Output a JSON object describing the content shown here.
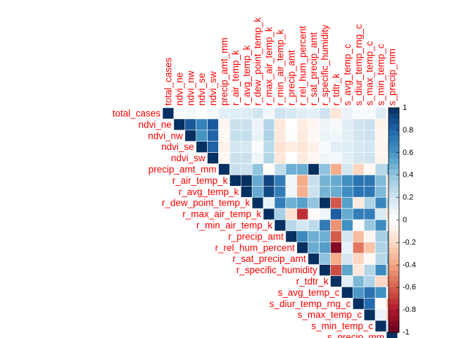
{
  "chart_data": {
    "type": "heatmap",
    "layout": "upper-triangle",
    "variables": [
      "total_cases",
      "ndvi_ne",
      "ndvi_nw",
      "ndvi_se",
      "ndvi_sw",
      "precip_amt_mm",
      "r_air_temp_k",
      "r_avg_temp_k",
      "r_dew_point_temp_k",
      "r_max_air_temp_k",
      "r_min_air_temp_k",
      "r_precip_amt",
      "r_rel_hum_percent",
      "r_sat_precip_amt",
      "r_specific_humidity",
      "r_tdtr_k",
      "s_avg_temp_c",
      "s_diur_temp_rng_c",
      "s_max_temp_c",
      "s_min_temp_c",
      "s_precip_mm"
    ],
    "matrix": [
      [
        1.0,
        0.03,
        0.05,
        0.0,
        0.05,
        0.12,
        0.14,
        0.15,
        0.2,
        0.06,
        0.21,
        0.18,
        0.14,
        0.12,
        0.21,
        -0.14,
        0.1,
        0.03,
        0.04,
        0.15,
        0.04
      ],
      [
        0.03,
        1.0,
        0.85,
        0.67,
        0.84,
        -0.05,
        0.22,
        0.22,
        0.08,
        0.3,
        -0.13,
        0.0,
        -0.1,
        -0.05,
        0.08,
        0.04,
        0.13,
        0.2,
        0.22,
        -0.07,
        -0.03
      ],
      [
        0.05,
        0.85,
        1.0,
        0.6,
        0.81,
        -0.04,
        0.24,
        0.24,
        0.09,
        0.31,
        -0.13,
        0.01,
        -0.11,
        -0.04,
        0.09,
        0.07,
        0.12,
        0.2,
        0.22,
        -0.05,
        -0.01
      ],
      [
        0.0,
        0.67,
        0.6,
        1.0,
        0.82,
        -0.08,
        0.19,
        0.18,
        0.02,
        0.27,
        -0.16,
        -0.1,
        -0.14,
        -0.08,
        0.03,
        0.13,
        0.14,
        0.18,
        0.19,
        -0.06,
        -0.07
      ],
      [
        0.05,
        0.84,
        0.81,
        0.82,
        1.0,
        -0.05,
        0.22,
        0.22,
        0.07,
        0.3,
        -0.14,
        0.0,
        -0.11,
        -0.05,
        0.07,
        0.06,
        0.13,
        0.19,
        0.21,
        -0.06,
        -0.04
      ],
      [
        0.12,
        -0.05,
        -0.04,
        -0.08,
        -0.05,
        1.0,
        0.23,
        0.22,
        0.4,
        -0.02,
        0.26,
        0.49,
        0.5,
        1.0,
        0.41,
        -0.37,
        0.19,
        -0.22,
        -0.04,
        0.29,
        0.46
      ],
      [
        0.14,
        0.22,
        0.24,
        0.19,
        0.22,
        0.23,
        1.0,
        1.0,
        0.51,
        0.92,
        0.7,
        0.07,
        -0.37,
        0.23,
        0.47,
        0.51,
        0.61,
        0.74,
        0.73,
        0.44,
        -0.12
      ],
      [
        0.15,
        0.22,
        0.24,
        0.18,
        0.22,
        0.22,
        1.0,
        1.0,
        0.51,
        0.91,
        0.7,
        0.07,
        -0.36,
        0.22,
        0.47,
        0.5,
        0.62,
        0.74,
        0.73,
        0.45,
        -0.12
      ],
      [
        0.2,
        0.08,
        0.09,
        0.02,
        0.07,
        0.4,
        0.51,
        0.51,
        1.0,
        0.11,
        0.7,
        0.49,
        0.55,
        0.4,
        1.0,
        -0.62,
        0.55,
        -0.11,
        0.32,
        0.66,
        0.3
      ],
      [
        0.06,
        0.3,
        0.31,
        0.27,
        0.3,
        -0.02,
        0.92,
        0.91,
        0.11,
        1.0,
        0.33,
        -0.17,
        -0.74,
        -0.02,
        0.07,
        0.83,
        0.51,
        0.7,
        0.69,
        0.17,
        -0.22
      ],
      [
        0.21,
        -0.13,
        -0.13,
        -0.16,
        -0.14,
        0.26,
        0.7,
        0.7,
        0.7,
        0.33,
        1.0,
        0.28,
        0.19,
        0.26,
        0.71,
        -0.45,
        0.61,
        0.02,
        0.38,
        0.63,
        0.1
      ],
      [
        0.18,
        0.0,
        0.01,
        -0.1,
        0.0,
        0.49,
        0.07,
        0.07,
        0.49,
        -0.17,
        0.28,
        1.0,
        0.64,
        0.49,
        0.49,
        -0.61,
        0.19,
        -0.31,
        -0.05,
        0.33,
        0.48
      ],
      [
        0.14,
        -0.1,
        -0.11,
        -0.14,
        -0.11,
        0.5,
        -0.37,
        -0.36,
        0.55,
        -0.74,
        0.19,
        0.64,
        1.0,
        0.5,
        0.56,
        -0.92,
        0.1,
        -0.53,
        -0.29,
        0.31,
        0.42
      ],
      [
        0.12,
        -0.05,
        -0.04,
        -0.08,
        -0.05,
        1.0,
        0.23,
        0.22,
        0.4,
        -0.02,
        0.26,
        0.49,
        0.5,
        1.0,
        0.41,
        -0.37,
        0.19,
        -0.22,
        -0.04,
        0.29,
        0.46
      ],
      [
        0.21,
        0.08,
        0.09,
        0.03,
        0.07,
        0.41,
        0.47,
        0.47,
        1.0,
        0.07,
        0.71,
        0.49,
        0.56,
        0.41,
        1.0,
        -0.65,
        0.53,
        -0.13,
        0.3,
        0.64,
        0.31
      ],
      [
        -0.14,
        0.04,
        0.07,
        0.13,
        0.06,
        -0.37,
        0.51,
        0.5,
        -0.62,
        0.83,
        -0.45,
        -0.61,
        -0.92,
        -0.37,
        -0.65,
        1.0,
        0.13,
        0.45,
        0.31,
        -0.21,
        -0.34
      ],
      [
        0.1,
        0.13,
        0.12,
        0.14,
        0.13,
        0.19,
        0.61,
        0.62,
        0.55,
        0.51,
        0.61,
        0.19,
        0.1,
        0.19,
        0.53,
        0.13,
        1.0,
        0.58,
        0.75,
        0.61,
        0.06
      ],
      [
        0.03,
        0.2,
        0.2,
        0.18,
        0.19,
        -0.22,
        0.74,
        0.74,
        -0.11,
        0.7,
        0.02,
        -0.31,
        -0.53,
        -0.22,
        -0.13,
        0.45,
        0.58,
        1.0,
        0.78,
        -0.01,
        -0.34
      ],
      [
        0.04,
        0.22,
        0.22,
        0.19,
        0.21,
        -0.04,
        0.73,
        0.73,
        0.32,
        0.69,
        0.38,
        -0.05,
        -0.29,
        -0.04,
        0.3,
        0.31,
        0.75,
        0.78,
        1.0,
        0.09,
        -0.28
      ],
      [
        0.15,
        -0.07,
        -0.05,
        -0.06,
        -0.06,
        0.29,
        0.44,
        0.45,
        0.66,
        0.17,
        0.63,
        0.33,
        0.31,
        0.29,
        0.64,
        -0.21,
        0.61,
        -0.01,
        0.09,
        1.0,
        0.18
      ],
      [
        0.04,
        -0.03,
        -0.01,
        -0.07,
        -0.04,
        0.46,
        -0.12,
        -0.12,
        0.3,
        -0.22,
        0.1,
        0.48,
        0.42,
        0.46,
        0.31,
        -0.34,
        0.06,
        -0.34,
        -0.28,
        0.18,
        1.0
      ]
    ],
    "colorbar": {
      "range": [
        -1,
        1
      ],
      "tick_labels": [
        "1",
        "0.8",
        "0.6",
        "0.4",
        "0.2",
        "0",
        "-0.2",
        "-0.4",
        "-0.6",
        "-0.8",
        "-1"
      ],
      "tick_values": [
        1,
        0.8,
        0.6,
        0.4,
        0.2,
        0,
        -0.2,
        -0.4,
        -0.6,
        -0.8,
        -1
      ]
    },
    "palette": [
      "#67001F",
      "#B2182B",
      "#D6604D",
      "#F4A582",
      "#FDDBC7",
      "#FFFFFF",
      "#D1E5F0",
      "#92C5DE",
      "#4393C3",
      "#2166AC",
      "#053061"
    ],
    "label_color": "#FF0000",
    "legend_position": "right"
  }
}
